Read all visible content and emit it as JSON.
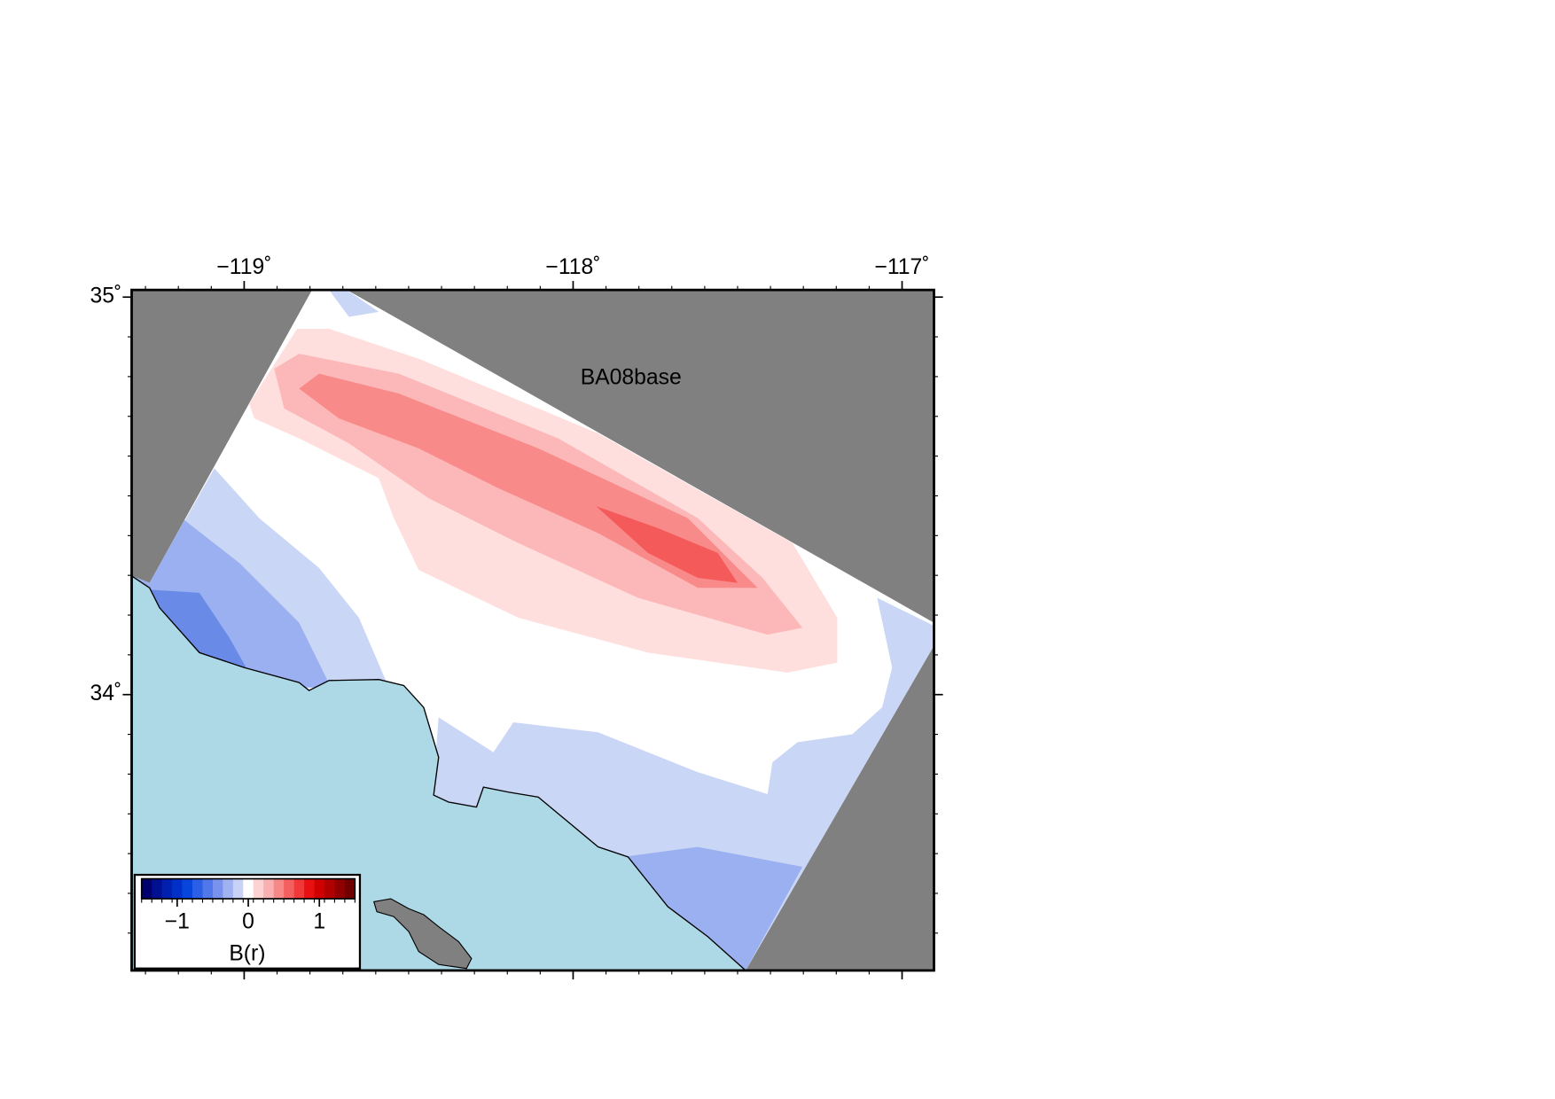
{
  "map": {
    "title": "BA08base",
    "lonlim": [
      -119.342,
      -116.903
    ],
    "latlim": [
      33.306,
      35.018
    ],
    "lon_ticks": [
      {
        "value": -119,
        "label": "−119˚"
      },
      {
        "value": -118,
        "label": "−118˚"
      },
      {
        "value": -117,
        "label": "−117˚"
      }
    ],
    "lat_ticks": [
      {
        "value": 35,
        "label": "35˚"
      },
      {
        "value": 34,
        "label": "34˚"
      }
    ],
    "colorbar": {
      "label": "B(r)",
      "range": [
        -1.5,
        1.5
      ],
      "ticks": [
        {
          "value": -1,
          "label": "−1"
        },
        {
          "value": 0,
          "label": "0"
        },
        {
          "value": 1,
          "label": "1"
        }
      ],
      "colors": [
        "#00006e",
        "#001090",
        "#0020b0",
        "#0030c8",
        "#0845dc",
        "#2a5fe6",
        "#5078ea",
        "#7892ee",
        "#a0b2f2",
        "#c8d2f7",
        "#ffffff",
        "#fcd2d2",
        "#fab0b0",
        "#f78888",
        "#f46060",
        "#f03838",
        "#e81010",
        "#d00000",
        "#b00000",
        "#900000",
        "#700000"
      ]
    }
  }
}
